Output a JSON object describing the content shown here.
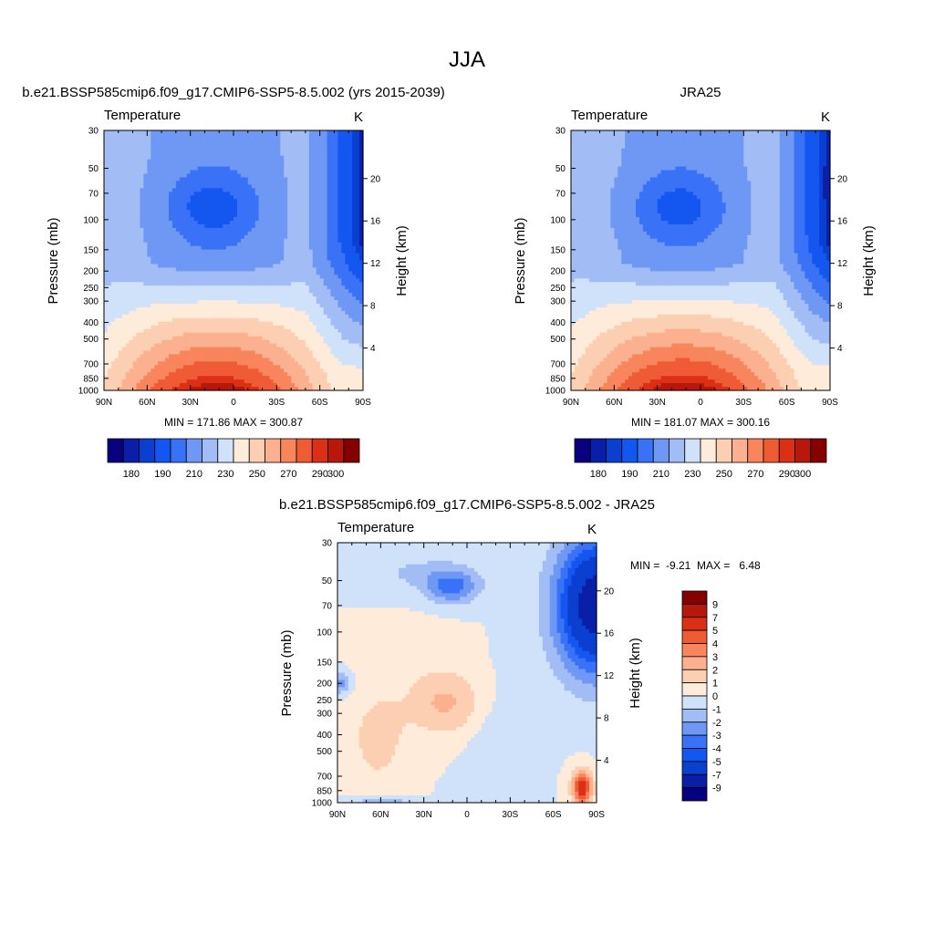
{
  "figure": {
    "title": "JJA",
    "bottom_panel_title": "b.e21.BSSP585cmip6.f09_g17.CMIP6-SSP5-8.5.002 - JRA25"
  },
  "chart_data": [
    {
      "type": "heatmap",
      "title": "b.e21.BSSP585cmip6.f09_g17.CMIP6-SSP5-8.5.002 (yrs 2015-2039)",
      "subtitle_left": "Temperature",
      "subtitle_right": "K",
      "xlabel": "",
      "ylabel": "Pressure (mb)",
      "ylabel_right": "Height (km)",
      "x_ticks": [
        "90N",
        "60N",
        "30N",
        "0",
        "30S",
        "60S",
        "90S"
      ],
      "x_range": [
        90,
        -90
      ],
      "y_ticks": [
        30,
        50,
        70,
        100,
        150,
        200,
        250,
        300,
        400,
        500,
        700,
        850,
        1000
      ],
      "y_range": [
        30,
        1000
      ],
      "y_scale": "log",
      "height_ticks": [
        4,
        8,
        12,
        16,
        20
      ],
      "stats_text": "MIN = 171.86  MAX = 300.87",
      "min": 171.86,
      "max": 300.87,
      "legend": "bottom",
      "colorbar_labels": [
        "180",
        "190",
        "210",
        "230",
        "250",
        "270",
        "290",
        "300"
      ],
      "colorbar_levels": [
        180,
        185,
        190,
        200,
        210,
        220,
        230,
        240,
        250,
        260,
        270,
        280,
        290,
        295,
        300
      ]
    },
    {
      "type": "heatmap",
      "title": "JRA25",
      "subtitle_left": "Temperature",
      "subtitle_right": "K",
      "xlabel": "",
      "ylabel": "Pressure (mb)",
      "ylabel_right": "Height (km)",
      "x_ticks": [
        "90N",
        "60N",
        "30N",
        "0",
        "30S",
        "60S",
        "90S"
      ],
      "x_range": [
        90,
        -90
      ],
      "y_ticks": [
        30,
        50,
        70,
        100,
        150,
        200,
        250,
        300,
        400,
        500,
        700,
        850,
        1000
      ],
      "y_range": [
        30,
        1000
      ],
      "y_scale": "log",
      "height_ticks": [
        4,
        8,
        12,
        16,
        20
      ],
      "stats_text": "MIN = 181.07  MAX = 300.16",
      "min": 181.07,
      "max": 300.16,
      "legend": "bottom",
      "colorbar_labels": [
        "180",
        "190",
        "210",
        "230",
        "250",
        "270",
        "290",
        "300"
      ],
      "colorbar_levels": [
        180,
        185,
        190,
        200,
        210,
        220,
        230,
        240,
        250,
        260,
        270,
        280,
        290,
        295,
        300
      ]
    },
    {
      "type": "heatmap",
      "title": "",
      "subtitle_left": "Temperature",
      "subtitle_right": "K",
      "xlabel": "",
      "ylabel": "Pressure (mb)",
      "ylabel_right": "Height (km)",
      "x_ticks": [
        "90N",
        "60N",
        "30N",
        "0",
        "30S",
        "60S",
        "90S"
      ],
      "x_range": [
        90,
        -90
      ],
      "y_ticks": [
        30,
        50,
        70,
        100,
        150,
        200,
        250,
        300,
        400,
        500,
        700,
        850,
        1000
      ],
      "y_range": [
        30,
        1000
      ],
      "y_scale": "log",
      "height_ticks": [
        4,
        8,
        12,
        16,
        20
      ],
      "stats_text": "MIN =  -9.21  MAX =   6.48",
      "min": -9.21,
      "max": 6.48,
      "legend": "right",
      "colorbar_labels": [
        "9",
        "7",
        "5",
        "4",
        "3",
        "2",
        "1",
        "0",
        "-1",
        "-2",
        "-3",
        "-4",
        "-5",
        "-7",
        "-9"
      ],
      "colorbar_levels": [
        -9,
        -7,
        -5,
        -4,
        -3,
        -2,
        -1,
        0,
        1,
        2,
        3,
        4,
        5,
        7,
        9
      ]
    }
  ],
  "colors": {
    "seq": [
      "#08007f",
      "#0a1fa8",
      "#0b3fd0",
      "#1456f0",
      "#3a72f7",
      "#6f98f5",
      "#a2bdf6",
      "#d0e2fa",
      "#feebd9",
      "#fdcfb2",
      "#fbb08f",
      "#f8855c",
      "#ef5b35",
      "#dc3016",
      "#b8170b",
      "#850000"
    ]
  }
}
